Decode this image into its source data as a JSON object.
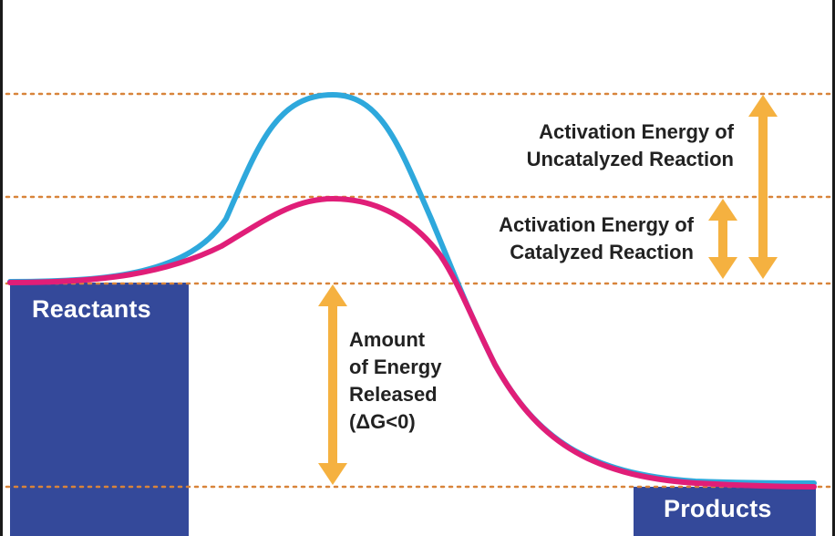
{
  "colors": {
    "background": "#ffffff",
    "block": "#34499a",
    "dashed_line": "#d8843a",
    "arrow": "#f5b140",
    "uncatalyzed_curve": "#2ea8dc",
    "catalyzed_curve": "#e01e78",
    "text": "#222222"
  },
  "diagram": {
    "reactants_label": "Reactants",
    "products_label": "Products",
    "uncatalyzed_label": {
      "line1": "Activation Energy of",
      "line2": "Uncatalyzed Reaction"
    },
    "catalyzed_label": {
      "line1": "Activation Energy of",
      "line2": "Catalyzed Reaction"
    },
    "released_label": {
      "line1": "Amount",
      "line2": "of Energy",
      "line3": "Released",
      "line4": "(ΔG<0)"
    }
  }
}
